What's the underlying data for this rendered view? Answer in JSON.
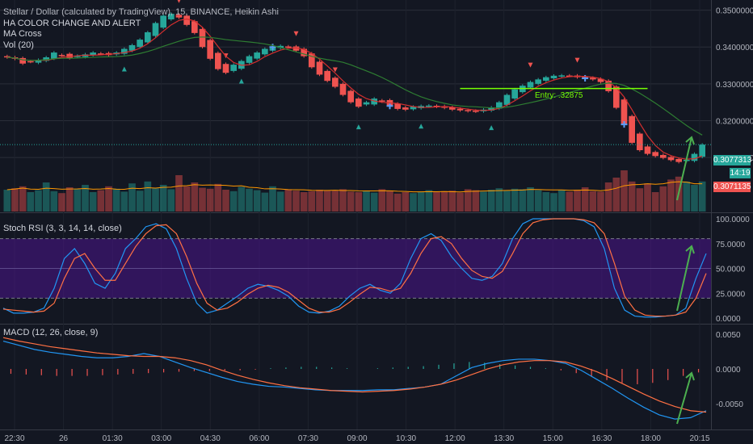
{
  "title": "Stellar / Dollar (calculated by TradingView), 15, BINANCE, Heikin Ashi",
  "indicators": [
    "HA COLOR CHANGE AND ALERT",
    "MA Cross",
    "Vol (20)"
  ],
  "stoch_title": "Stoch RSI (3, 3, 14, 14, close)",
  "macd_title": "MACD (12, 26, close, 9)",
  "entry_label": "Entry: .32875",
  "price_tags": {
    "last": "0.3077313",
    "countdown": "14:19",
    "lower": "0.3071135"
  },
  "colors": {
    "up": "#26a69a",
    "down": "#ef5350",
    "bg": "#131722",
    "k": "#2196f3",
    "d": "#ff7043",
    "ma_fast": "#d32f2f",
    "ma_slow": "#2e7d32",
    "entry": "#76ff03",
    "arrow": "#4caf50",
    "band": "#4a148c"
  },
  "chart_data": [
    {
      "type": "candlestick",
      "name": "price",
      "ylim": [
        0.3085,
        0.351
      ],
      "y_ticks": [
        "0.3500000",
        "0.3400000",
        "0.3300000",
        "0.3200000",
        "0.3100000"
      ],
      "x_ticks": [
        "22:30",
        "26",
        "01:30",
        "03:00",
        "04:30",
        "06:00",
        "07:30",
        "09:00",
        "10:30",
        "12:00",
        "13:30",
        "15:00",
        "16:30",
        "18:00",
        "20:15"
      ],
      "entry_level": 0.32875,
      "close": [
        0.3372,
        0.3368,
        0.3355,
        0.336,
        0.3365,
        0.3372,
        0.3385,
        0.3378,
        0.337,
        0.3376,
        0.338,
        0.3385,
        0.3382,
        0.3378,
        0.3385,
        0.3395,
        0.3405,
        0.342,
        0.344,
        0.3465,
        0.3485,
        0.349,
        0.348,
        0.346,
        0.3438,
        0.34,
        0.3368,
        0.334,
        0.333,
        0.3352,
        0.3362,
        0.3375,
        0.3385,
        0.3395,
        0.34,
        0.3403,
        0.34,
        0.339,
        0.3375,
        0.3345,
        0.3325,
        0.3308,
        0.3292,
        0.327,
        0.325,
        0.3238,
        0.325,
        0.326,
        0.3252,
        0.324,
        0.3232,
        0.323,
        0.3238,
        0.324,
        0.3241,
        0.3238,
        0.3235,
        0.323,
        0.3228,
        0.3226,
        0.3225,
        0.323,
        0.3236,
        0.325,
        0.327,
        0.3285,
        0.3295,
        0.3305,
        0.3312,
        0.3318,
        0.3322,
        0.3323,
        0.3322,
        0.3318,
        0.3315,
        0.3312,
        0.3305,
        0.328,
        0.3235,
        0.319,
        0.314,
        0.312,
        0.311,
        0.3104,
        0.3099,
        0.3093,
        0.3088,
        0.3094,
        0.311,
        0.3135
      ]
    },
    {
      "type": "bar",
      "name": "Vol (20)",
      "values": [
        0.45,
        0.48,
        0.52,
        0.4,
        0.44,
        0.6,
        0.42,
        0.38,
        0.5,
        0.46,
        0.55,
        0.4,
        0.44,
        0.52,
        0.47,
        0.41,
        0.58,
        0.43,
        0.62,
        0.48,
        0.55,
        0.46,
        0.75,
        0.52,
        0.6,
        0.49,
        0.47,
        0.57,
        0.45,
        0.42,
        0.51,
        0.47,
        0.44,
        0.39,
        0.52,
        0.41,
        0.46,
        0.43,
        0.4,
        0.42,
        0.45,
        0.44,
        0.43,
        0.46,
        0.41,
        0.4,
        0.42,
        0.39,
        0.46,
        0.43,
        0.37,
        0.4,
        0.38,
        0.41,
        0.44,
        0.4,
        0.42,
        0.43,
        0.39,
        0.46,
        0.44,
        0.41,
        0.45,
        0.48,
        0.43,
        0.47,
        0.46,
        0.5,
        0.44,
        0.4,
        0.38,
        0.45,
        0.41,
        0.45,
        0.5,
        0.42,
        0.41,
        0.6,
        0.7,
        0.85,
        0.62,
        0.48,
        0.58,
        0.4,
        0.52,
        0.66,
        0.72,
        0.62,
        0.55,
        0.62
      ]
    },
    {
      "type": "line",
      "name": "Stoch RSI",
      "ylim": [
        0,
        100
      ],
      "y_ticks": [
        "100.0000",
        "75.0000",
        "50.0000",
        "25.0000",
        "0.0000"
      ],
      "series": [
        {
          "values": [
            10,
            5,
            5,
            6,
            10,
            30,
            60,
            70,
            55,
            35,
            30,
            45,
            70,
            80,
            92,
            95,
            90,
            70,
            40,
            15,
            5,
            8,
            15,
            22,
            30,
            34,
            32,
            28,
            22,
            12,
            6,
            5,
            7,
            12,
            22,
            30,
            34,
            28,
            25,
            35,
            60,
            80,
            85,
            78,
            62,
            50,
            40,
            38,
            42,
            55,
            80,
            95,
            100,
            100,
            100,
            100,
            100,
            98,
            92,
            70,
            30,
            8,
            2,
            1,
            1,
            2,
            3,
            10,
            40,
            65
          ]
        },
        {
          "values": [
            9,
            8,
            7,
            6,
            7,
            15,
            40,
            60,
            65,
            50,
            38,
            38,
            55,
            72,
            85,
            93,
            94,
            85,
            62,
            35,
            15,
            8,
            10,
            16,
            24,
            30,
            33,
            31,
            26,
            18,
            10,
            6,
            6,
            9,
            16,
            24,
            31,
            30,
            27,
            30,
            45,
            65,
            80,
            82,
            75,
            60,
            48,
            42,
            40,
            47,
            65,
            85,
            96,
            99,
            100,
            100,
            100,
            99,
            96,
            85,
            55,
            22,
            8,
            3,
            2,
            2,
            3,
            6,
            20,
            45
          ]
        }
      ]
    },
    {
      "type": "line",
      "name": "MACD",
      "ylim": [
        -0.008,
        0.0058
      ],
      "y_ticks": [
        "0.0050",
        "0.0000",
        "-0.0050"
      ],
      "series": [
        {
          "values": [
            0.004,
            0.0034,
            0.0028,
            0.0024,
            0.0021,
            0.0018,
            0.0016,
            0.0016,
            0.0018,
            0.0022,
            0.0018,
            0.001,
            0.0002,
            -0.0005,
            -0.0012,
            -0.0018,
            -0.0022,
            -0.0025,
            -0.0026,
            -0.0028,
            -0.003,
            -0.0031,
            -0.0031,
            -0.0031,
            -0.003,
            -0.003,
            -0.0028,
            -0.0026,
            -0.0022,
            -0.001,
            0.0002,
            0.0008,
            0.0012,
            0.0014,
            0.0014,
            0.0012,
            0.0008,
            -0.0002,
            -0.0015,
            -0.0028,
            -0.0042,
            -0.0055,
            -0.0066,
            -0.0072,
            -0.007,
            -0.006
          ]
        },
        {
          "values": [
            0.0045,
            0.004,
            0.0036,
            0.0032,
            0.0029,
            0.0026,
            0.0023,
            0.0021,
            0.0019,
            0.0018,
            0.0018,
            0.0016,
            0.0012,
            0.0006,
            -0.0002,
            -0.0009,
            -0.0015,
            -0.002,
            -0.0024,
            -0.0027,
            -0.0029,
            -0.0031,
            -0.0032,
            -0.0033,
            -0.0032,
            -0.0031,
            -0.0029,
            -0.0026,
            -0.0022,
            -0.0016,
            -0.0008,
            0.0,
            0.0006,
            0.001,
            0.0012,
            0.0012,
            0.001,
            0.0004,
            -0.0004,
            -0.0014,
            -0.0025,
            -0.0036,
            -0.0046,
            -0.0054,
            -0.006,
            -0.0062
          ]
        }
      ],
      "histogram": [
        -0.0007,
        -0.0008,
        -0.0009,
        -0.001,
        -0.001,
        -0.001,
        -0.0009,
        -0.0008,
        -0.0007,
        -0.0006,
        -0.0005,
        -0.0004,
        -0.0003,
        -0.0003,
        -0.0002,
        -0.0002,
        -0.0001,
        0.0001,
        0.0002,
        0.0003,
        0.0003,
        0.0002,
        0.0001,
        0.0,
        0.0001,
        0.0002,
        0.0003,
        0.0004,
        0.0006,
        0.0008,
        0.001,
        0.0009,
        0.0007,
        0.0005,
        0.0003,
        0.0001,
        -0.0002,
        -0.0006,
        -0.0011,
        -0.0016,
        -0.002,
        -0.0022,
        -0.002,
        -0.0016,
        -0.001,
        -0.0005
      ]
    }
  ]
}
